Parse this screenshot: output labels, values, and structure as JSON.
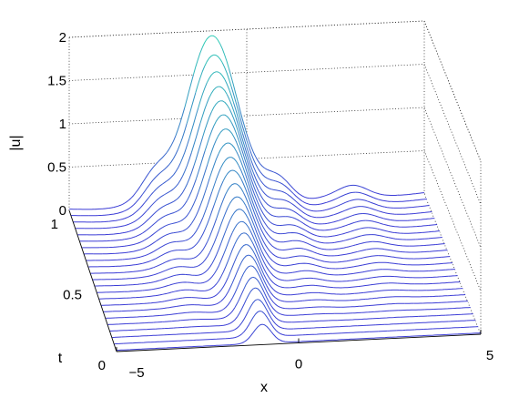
{
  "chart_data": {
    "type": "waterfall-3d",
    "title": "",
    "xlabel": "x",
    "ylabel": "t",
    "zlabel": "|u|",
    "xlim": [
      -5,
      5
    ],
    "ylim": [
      0,
      1
    ],
    "zlim": [
      0,
      2
    ],
    "x_ticks": [
      "−5",
      "0",
      "5"
    ],
    "t_ticks": [
      "0",
      "0.5",
      "1"
    ],
    "z_ticks": [
      "0",
      "0.5",
      "1",
      "1.5",
      "2"
    ],
    "grid": true,
    "n_curves": 23,
    "t_values": [
      0,
      0.045,
      0.091,
      0.136,
      0.182,
      0.227,
      0.273,
      0.318,
      0.364,
      0.409,
      0.455,
      0.5,
      0.545,
      0.591,
      0.636,
      0.682,
      0.727,
      0.773,
      0.818,
      0.864,
      0.909,
      0.955,
      1.0
    ],
    "peak_center_x": -1.0,
    "peak_amplitude_by_t": [
      0.22,
      0.3,
      0.36,
      0.42,
      0.47,
      0.53,
      0.58,
      0.63,
      0.69,
      0.75,
      0.82,
      0.89,
      0.97,
      1.05,
      1.13,
      1.22,
      1.31,
      1.4,
      1.49,
      1.58,
      1.68,
      1.8,
      1.95
    ],
    "peak_width_by_t": [
      0.34,
      0.36,
      0.38,
      0.41,
      0.44,
      0.47,
      0.5,
      0.53,
      0.56,
      0.6,
      0.63,
      0.67,
      0.7,
      0.74,
      0.77,
      0.8,
      0.83,
      0.86,
      0.89,
      0.92,
      0.95,
      0.98,
      1.0
    ],
    "side_lobes": [
      {
        "x": -2.6,
        "amplitude_at_t1": 0.28
      },
      {
        "x": 0.9,
        "amplitude_at_t1": 0.25
      },
      {
        "x": 3.0,
        "amplitude_at_t1": 0.1
      }
    ],
    "colormap": {
      "low": "#3b3bd6",
      "high": "#2fd2b4"
    }
  }
}
